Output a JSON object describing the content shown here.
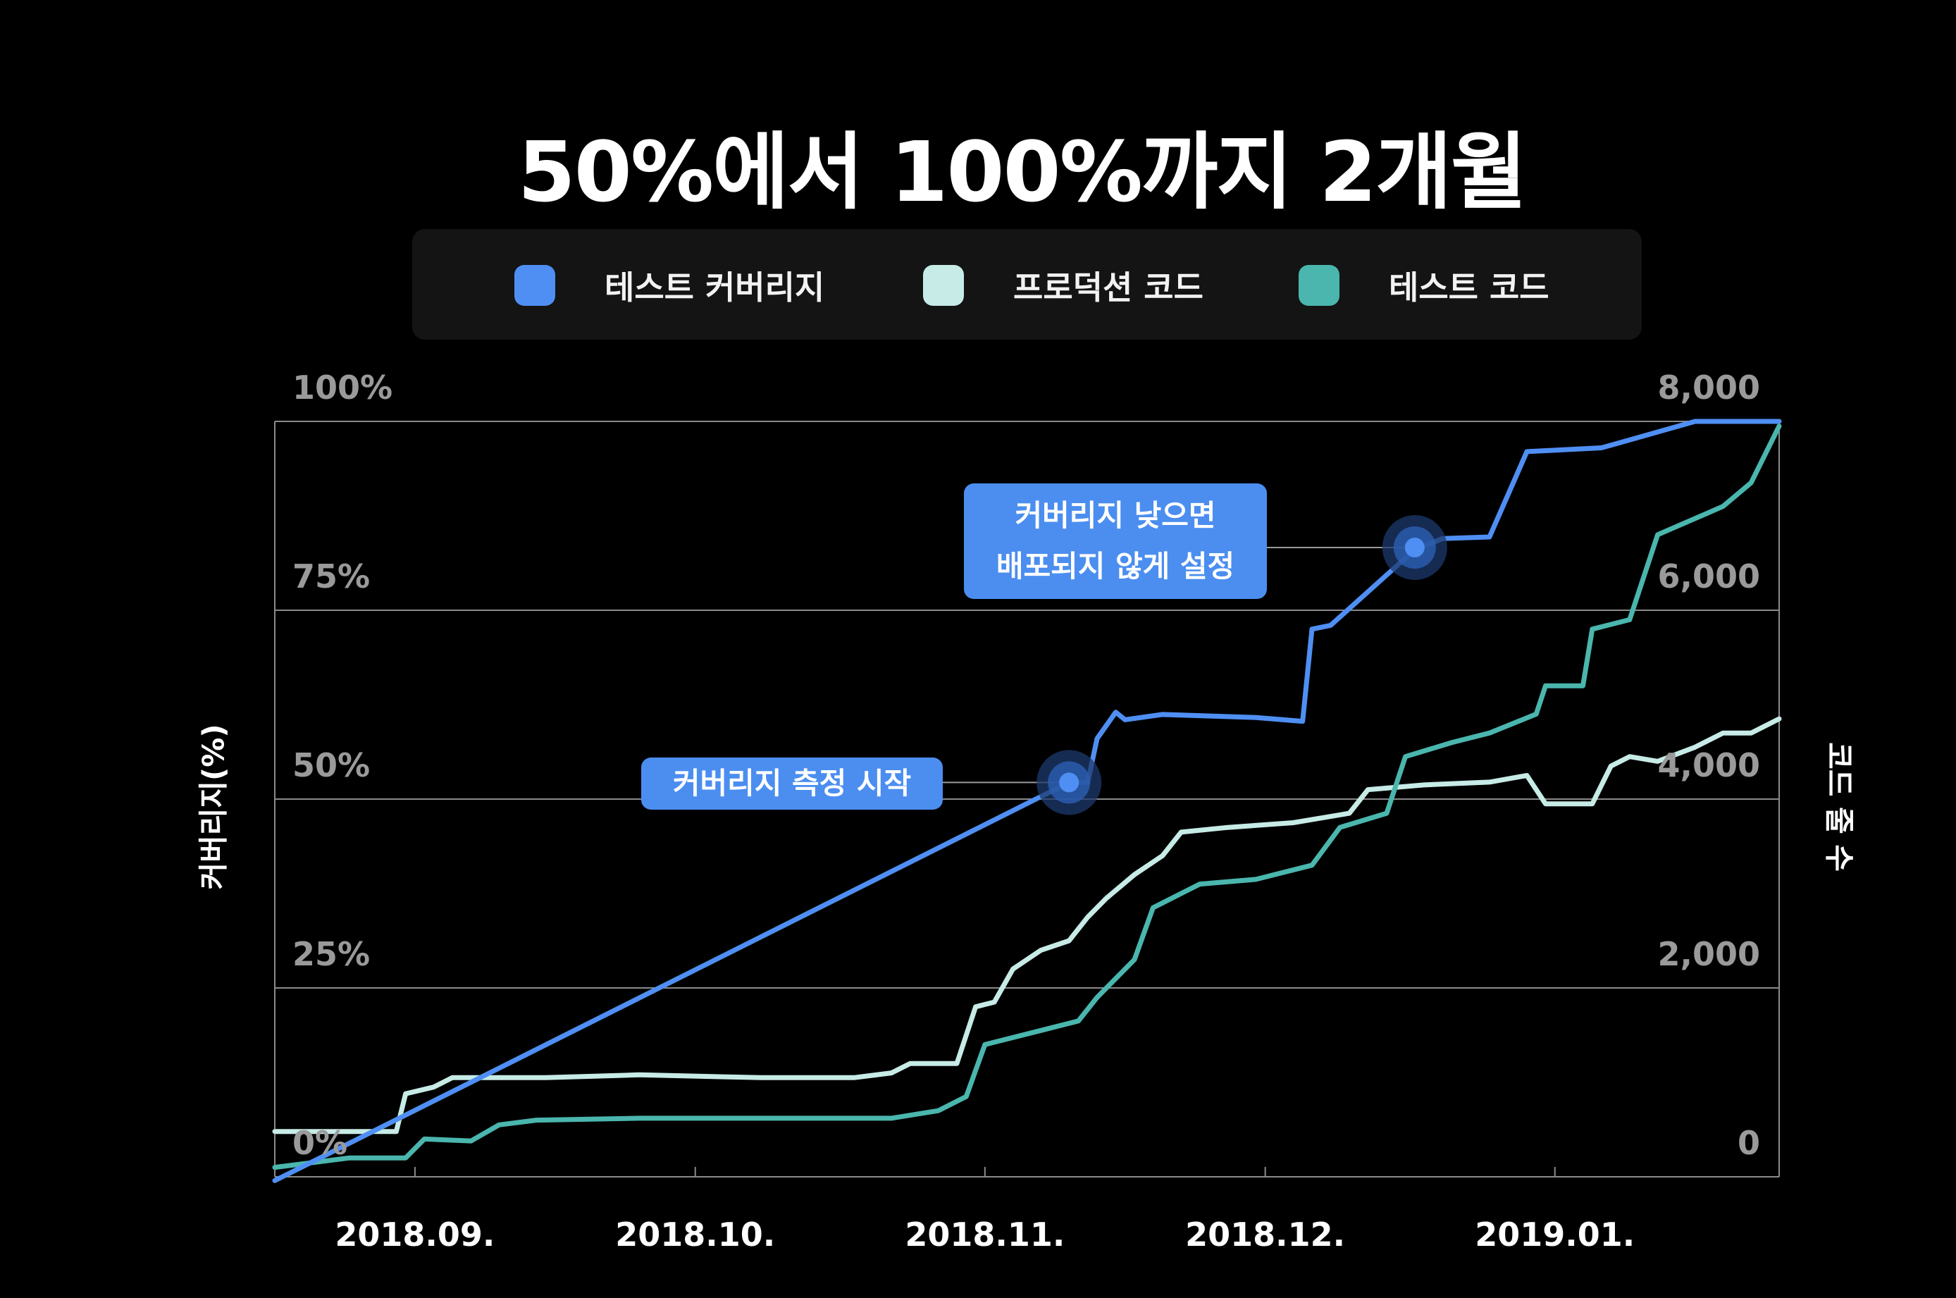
{
  "title": "50%에서 100%까지 2개월",
  "legend": [
    {
      "label": "테스트 커버리지",
      "color": "#4f8ff3"
    },
    {
      "label": "프로덕션 코드",
      "color": "#c7ebe6"
    },
    {
      "label": "테스트 코드",
      "color": "#4ab6ad"
    }
  ],
  "annotations": {
    "start": "커버리지 측정 시작",
    "policy_line1": "커버리지 낮으면",
    "policy_line2": "배포되지 않게 설정"
  },
  "chart_data": {
    "type": "line",
    "x_tick_labels": [
      "2018.09.",
      "2018.10.",
      "2018.11.",
      "2018.12.",
      "2019.01."
    ],
    "x_range": [
      "2018-08-17",
      "2019-01-25"
    ],
    "y_left": {
      "label": "커버리지(%)",
      "range": [
        0,
        100
      ],
      "ticks": [
        "0%",
        "25%",
        "50%",
        "75%",
        "100%"
      ]
    },
    "y_right": {
      "label": "코드 줄 수",
      "range": [
        0,
        8000
      ],
      "ticks": [
        "0",
        "2,000",
        "4,000",
        "6,000",
        "8,000"
      ]
    },
    "grid": true,
    "series": [
      {
        "name": "테스트 커버리지",
        "axis": "left",
        "color": "#4f8ff3",
        "points": [
          [
            "2018-08-17",
            -0.5
          ],
          [
            "2018-11-10",
            52.2
          ],
          [
            "2018-11-12",
            52.2
          ],
          [
            "2018-11-13",
            58
          ],
          [
            "2018-11-15",
            61.5
          ],
          [
            "2018-11-16",
            60.5
          ],
          [
            "2018-11-20",
            61.2
          ],
          [
            "2018-11-30",
            60.8
          ],
          [
            "2018-12-05",
            60.3
          ],
          [
            "2018-12-06",
            72.5
          ],
          [
            "2018-12-08",
            73
          ],
          [
            "2018-12-17",
            83
          ],
          [
            "2018-12-20",
            84.5
          ],
          [
            "2018-12-25",
            84.7
          ],
          [
            "2018-12-29",
            96
          ],
          [
            "2019-01-06",
            96.5
          ],
          [
            "2019-01-16",
            100
          ],
          [
            "2019-01-25",
            100
          ]
        ]
      },
      {
        "name": "프로덕션 코드",
        "axis": "right",
        "color": "#c7ebe6",
        "points": [
          [
            "2018-08-17",
            480
          ],
          [
            "2018-08-30",
            480
          ],
          [
            "2018-08-31",
            880
          ],
          [
            "2018-09-03",
            950
          ],
          [
            "2018-09-05",
            1050
          ],
          [
            "2018-09-15",
            1050
          ],
          [
            "2018-09-25",
            1080
          ],
          [
            "2018-10-08",
            1050
          ],
          [
            "2018-10-18",
            1050
          ],
          [
            "2018-10-22",
            1100
          ],
          [
            "2018-10-24",
            1200
          ],
          [
            "2018-10-29",
            1200
          ],
          [
            "2018-10-31",
            1800
          ],
          [
            "2018-11-02",
            1850
          ],
          [
            "2018-11-04",
            2200
          ],
          [
            "2018-11-07",
            2400
          ],
          [
            "2018-11-10",
            2500
          ],
          [
            "2018-11-12",
            2750
          ],
          [
            "2018-11-14",
            2950
          ],
          [
            "2018-11-17",
            3200
          ],
          [
            "2018-11-20",
            3400
          ],
          [
            "2018-11-22",
            3650
          ],
          [
            "2018-11-27",
            3700
          ],
          [
            "2018-12-04",
            3750
          ],
          [
            "2018-12-10",
            3850
          ],
          [
            "2018-12-12",
            4100
          ],
          [
            "2018-12-18",
            4150
          ],
          [
            "2018-12-25",
            4180
          ],
          [
            "2018-12-29",
            4250
          ],
          [
            "2018-12-31",
            3950
          ],
          [
            "2019-01-05",
            3950
          ],
          [
            "2019-01-07",
            4350
          ],
          [
            "2019-01-09",
            4450
          ],
          [
            "2019-01-12",
            4400
          ],
          [
            "2019-01-16",
            4550
          ],
          [
            "2019-01-19",
            4700
          ],
          [
            "2019-01-22",
            4700
          ],
          [
            "2019-01-25",
            4850
          ]
        ]
      },
      {
        "name": "테스트 코드",
        "axis": "right",
        "color": "#4ab6ad",
        "points": [
          [
            "2018-08-17",
            100
          ],
          [
            "2018-08-25",
            200
          ],
          [
            "2018-08-31",
            200
          ],
          [
            "2018-09-02",
            400
          ],
          [
            "2018-09-07",
            380
          ],
          [
            "2018-09-10",
            550
          ],
          [
            "2018-09-14",
            600
          ],
          [
            "2018-09-25",
            620
          ],
          [
            "2018-10-10",
            620
          ],
          [
            "2018-10-22",
            620
          ],
          [
            "2018-10-27",
            700
          ],
          [
            "2018-10-30",
            850
          ],
          [
            "2018-11-01",
            1400
          ],
          [
            "2018-11-07",
            1550
          ],
          [
            "2018-11-11",
            1650
          ],
          [
            "2018-11-13",
            1900
          ],
          [
            "2018-11-17",
            2300
          ],
          [
            "2018-11-19",
            2850
          ],
          [
            "2018-11-24",
            3100
          ],
          [
            "2018-11-30",
            3150
          ],
          [
            "2018-12-06",
            3300
          ],
          [
            "2018-12-09",
            3700
          ],
          [
            "2018-12-14",
            3850
          ],
          [
            "2018-12-16",
            4450
          ],
          [
            "2018-12-21",
            4600
          ],
          [
            "2018-12-25",
            4700
          ],
          [
            "2018-12-30",
            4900
          ],
          [
            "2018-12-31",
            5200
          ],
          [
            "2019-01-04",
            5200
          ],
          [
            "2019-01-05",
            5800
          ],
          [
            "2019-01-09",
            5900
          ],
          [
            "2019-01-12",
            6800
          ],
          [
            "2019-01-19",
            7100
          ],
          [
            "2019-01-22",
            7350
          ],
          [
            "2019-01-25",
            7950
          ]
        ]
      }
    ],
    "markers": [
      {
        "series": "테스트 커버리지",
        "date": "2018-11-10",
        "value": 52.2
      },
      {
        "series": "테스트 커버리지",
        "date": "2018-12-17",
        "value": 83.3
      }
    ]
  }
}
